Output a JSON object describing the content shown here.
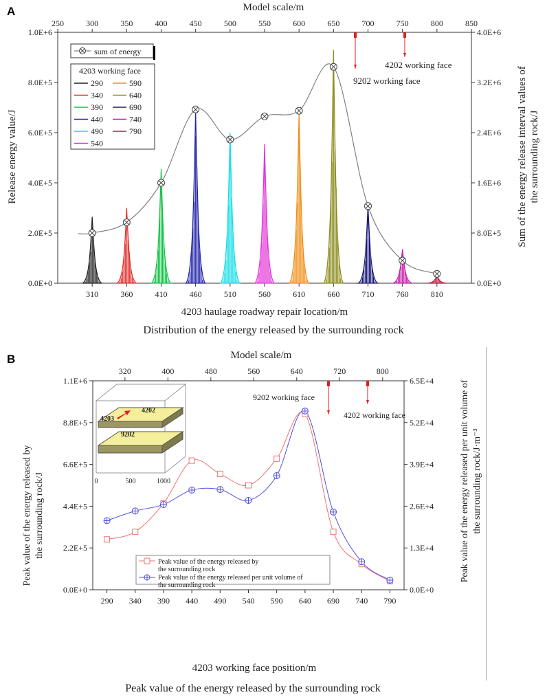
{
  "panel_a": {
    "label": "A",
    "caption": "Distribution of the energy released by the surrounding rock",
    "legend_sum": "sum of energy",
    "legend_group_title": "4203 working face",
    "legend_items": [
      {
        "name": "290",
        "color": "#222222"
      },
      {
        "name": "340",
        "color": "#e0302c"
      },
      {
        "name": "390",
        "color": "#19c24a"
      },
      {
        "name": "440",
        "color": "#2326a8"
      },
      {
        "name": "490",
        "color": "#14dce6"
      },
      {
        "name": "540",
        "color": "#e233d6"
      },
      {
        "name": "590",
        "color": "#f08c14"
      },
      {
        "name": "640",
        "color": "#8c8c1e"
      },
      {
        "name": "690",
        "color": "#1a1a7a"
      },
      {
        "name": "740",
        "color": "#c41ea8"
      },
      {
        "name": "790",
        "color": "#b41e3c"
      }
    ],
    "annotations": [
      "9202 working face",
      "4202 working face"
    ],
    "sum_color": "#808080"
  },
  "panel_b": {
    "label": "B",
    "caption": "Peak value of the energy released by the surrounding rock",
    "legend": [
      "Peak value of the energy released by",
      "the surrounding rock",
      "Peak value of the energy released per unit volume of",
      "the surrounding rock"
    ],
    "annotations": [
      "9202 working face",
      "4202 working face"
    ],
    "inset_labels": [
      "4203",
      "4202",
      "9202"
    ],
    "inset_ticks": [
      "0",
      "500",
      "1000"
    ],
    "series_colors": [
      "#f07070",
      "#5050e0"
    ]
  },
  "chart_data": [
    {
      "type": "area",
      "title": "Distribution of the energy released by the surrounding rock",
      "xlabel": "4203 haulage roadway repair location/m",
      "ylabel": "Release energy value/J",
      "y2label": [
        "Sum of the energy release interval values of",
        "the surrounding rock/J"
      ],
      "top_axis_label": "Model scale/m",
      "x_ticks": [
        "310",
        "360",
        "410",
        "460",
        "510",
        "560",
        "610",
        "660",
        "710",
        "760",
        "810"
      ],
      "top_ticks": [
        "250",
        "300",
        "350",
        "400",
        "450",
        "500",
        "550",
        "600",
        "650",
        "700",
        "750",
        "800",
        "850"
      ],
      "y_ticks": [
        "0.0E+0",
        "2.0E+5",
        "4.0E+5",
        "6.0E+5",
        "8.0E+5",
        "1.0E+6"
      ],
      "y2_ticks": [
        "0.0E+0",
        "8.0E+5",
        "1.6E+6",
        "2.4E+6",
        "3.2E+6",
        "4.0E+6"
      ],
      "ylim": [
        0,
        1000000
      ],
      "y2lim": [
        0,
        4000000
      ],
      "xlim": [
        260,
        860
      ],
      "peaks": {
        "series": [
          "290",
          "340",
          "390",
          "440",
          "490",
          "540",
          "590",
          "640",
          "690",
          "740",
          "790"
        ],
        "x": [
          310,
          360,
          410,
          460,
          510,
          560,
          610,
          660,
          710,
          760,
          810
        ],
        "values": [
          265000,
          300000,
          455000,
          690000,
          600000,
          555000,
          680000,
          930000,
          310000,
          135000,
          30000
        ]
      },
      "sum_of_energy": {
        "x": [
          310,
          360,
          410,
          460,
          510,
          560,
          610,
          660,
          710,
          760,
          810
        ],
        "values": [
          800000,
          970000,
          1600000,
          2770000,
          2290000,
          2660000,
          2750000,
          3450000,
          1230000,
          360000,
          150000
        ]
      }
    },
    {
      "type": "line",
      "title": "Peak value of the energy released by the surrounding rock",
      "xlabel": "4203 working face position/m",
      "ylabel": [
        "Peak value of the energy released by",
        "the surrounding rock/J"
      ],
      "y2label": [
        "Peak value of the energy released per unit volume of",
        "the surrounding rock/J·m⁻³"
      ],
      "top_axis_label": "Model scale/m",
      "x_ticks": [
        "290",
        "340",
        "390",
        "440",
        "490",
        "540",
        "590",
        "640",
        "690",
        "740",
        "790"
      ],
      "top_ticks": [
        "320",
        "400",
        "480",
        "560",
        "640",
        "720",
        "800"
      ],
      "y_ticks": [
        "0.0E+0",
        "2.2E+5",
        "4.4E+5",
        "6.6E+5",
        "8.8E+5",
        "1.1E+6"
      ],
      "y2_ticks": [
        "0.0E+0",
        "1.3E+4",
        "2.6E+4",
        "3.9E+4",
        "5.2E+4",
        "6.5E+4"
      ],
      "ylim": [
        0,
        1100000
      ],
      "y2lim": [
        0,
        65000
      ],
      "x": [
        290,
        340,
        390,
        440,
        490,
        540,
        590,
        640,
        690,
        740,
        790
      ],
      "series": [
        {
          "name": "Peak value of the energy released by the surrounding rock",
          "values": [
            265000,
            305000,
            455000,
            680000,
            610000,
            550000,
            690000,
            925000,
            305000,
            135000,
            45000
          ]
        },
        {
          "name": "Peak value of the energy released per unit volume of the surrounding rock",
          "values": [
            21500,
            24500,
            26500,
            31000,
            31200,
            27800,
            35500,
            55600,
            24200,
            8700,
            3000
          ]
        }
      ]
    }
  ]
}
